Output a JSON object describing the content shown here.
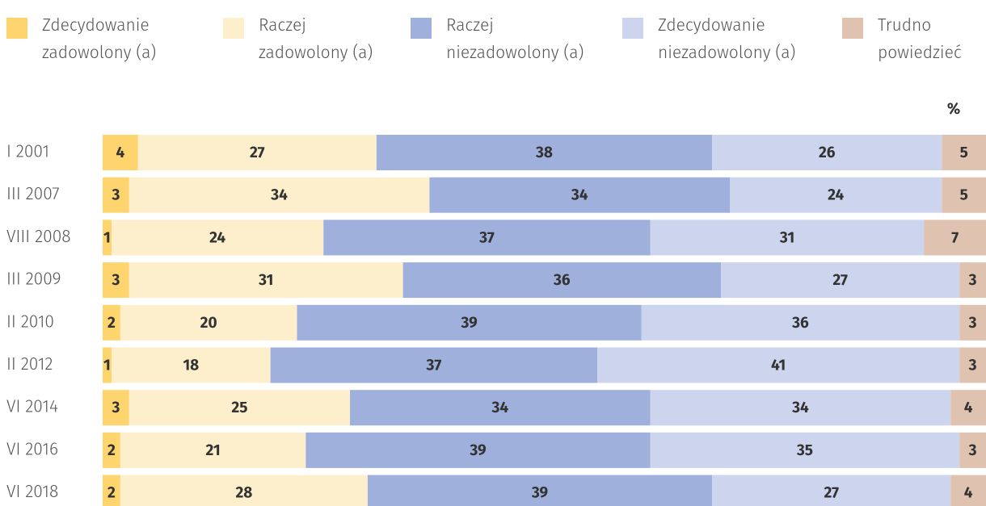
{
  "chart_data": {
    "type": "stacked_bar_horizontal",
    "unit_label": "%",
    "categories": [
      "I 2001",
      "III 2007",
      "VIII 2008",
      "III 2009",
      "II 2010",
      "II 2012",
      "VI 2014",
      "VI 2016",
      "VI 2018"
    ],
    "series": [
      {
        "name": "Zdecydowanie zadowolony (a)",
        "color": "#fdd46e",
        "values": [
          4,
          3,
          1,
          3,
          2,
          1,
          3,
          2,
          2
        ]
      },
      {
        "name": "Raczej zadowolony (a)",
        "color": "#fdefcc",
        "values": [
          27,
          34,
          24,
          31,
          20,
          18,
          25,
          21,
          28
        ]
      },
      {
        "name": "Raczej niezadowolony (a)",
        "color": "#9fb0dc",
        "values": [
          38,
          34,
          37,
          36,
          39,
          37,
          34,
          39,
          39
        ]
      },
      {
        "name": "Zdecydowanie niezadowolony (a)",
        "color": "#ccd4ee",
        "values": [
          26,
          24,
          31,
          27,
          36,
          41,
          34,
          35,
          27
        ]
      },
      {
        "name": "Trudno powiedzieć",
        "color": "#dfc3b0",
        "values": [
          5,
          5,
          7,
          3,
          3,
          3,
          4,
          3,
          4
        ]
      }
    ],
    "xlim": [
      0,
      100
    ]
  }
}
